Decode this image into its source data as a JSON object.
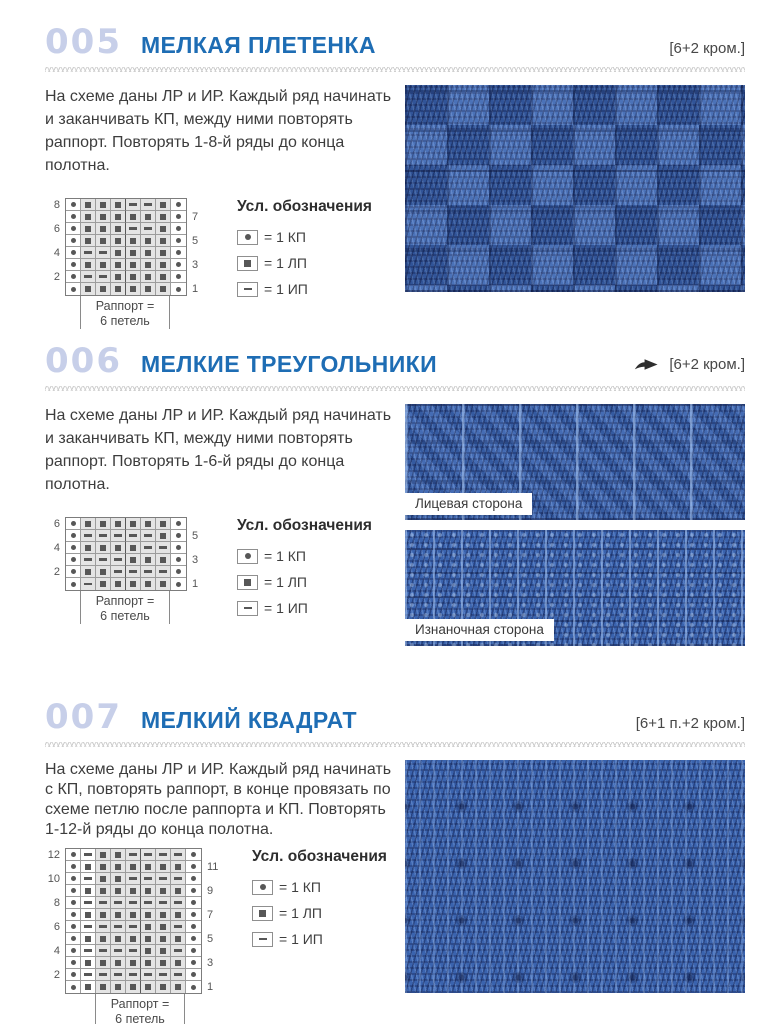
{
  "colors": {
    "accent_blue": "#1e6db4",
    "number_blue": "#c7cfe9",
    "swatch_blue": "#3a63ae",
    "shaded_cell": "#e4e4e4"
  },
  "symbol_key": {
    "O": "dot = 1 КП",
    "S": "square = 1 ЛП",
    "-": "dash = 1 ИП"
  },
  "legend": {
    "title": "Усл. обозначения",
    "items": [
      {
        "symbol": "dot",
        "label": "= 1 КП"
      },
      {
        "symbol": "square",
        "label": "= 1 ЛП"
      },
      {
        "symbol": "dash",
        "label": "= 1 ИП"
      }
    ]
  },
  "sections": [
    {
      "number": "005",
      "title": "МЕЛКАЯ ПЛЕТЕНКА",
      "note": "[6+2 кром.]",
      "has_arrow": false,
      "description": "На схеме даны ЛР и ИР. Каждый ряд начинать и заканчивать КП, между ними повторять раппорт. Повторять 1-8-й ряды до конца полотна.",
      "chart": {
        "shaded_from": 2,
        "shaded_to": 7,
        "heavy_after": 4,
        "rapport_line1": "Раппорт =",
        "rapport_line2": "6 петель",
        "rows": [
          {
            "left": "8",
            "right": "",
            "cells": "OSSS--SO"
          },
          {
            "left": "",
            "right": "7",
            "cells": "OSSSSSSO"
          },
          {
            "left": "6",
            "right": "",
            "cells": "OSSS--SO"
          },
          {
            "left": "",
            "right": "5",
            "cells": "OSSSSSSO"
          },
          {
            "left": "4",
            "right": "",
            "cells": "O--SSSSO"
          },
          {
            "left": "",
            "right": "3",
            "cells": "OSSSSSSO"
          },
          {
            "left": "2",
            "right": "",
            "cells": "O--SSSSO"
          },
          {
            "left": "",
            "right": "1",
            "cells": "OSSSSSSO"
          }
        ]
      },
      "swatches": [
        {
          "label": null
        }
      ]
    },
    {
      "number": "006",
      "title": "МЕЛКИЕ ТРЕУГОЛЬНИКИ",
      "note": "[6+2 кром.]",
      "has_arrow": true,
      "description": "На схеме даны ЛР и ИР. Каждый ряд начинать и заканчивать КП, между ними повторять раппорт. Повторять 1-6-й ряды до конца полотна.",
      "chart": {
        "shaded_from": 2,
        "shaded_to": 7,
        "heavy_after": 4,
        "rapport_line1": "Раппорт =",
        "rapport_line2": "6 петель",
        "rows": [
          {
            "left": "6",
            "right": "",
            "cells": "OSSSSSSO"
          },
          {
            "left": "",
            "right": "5",
            "cells": "O-----SO"
          },
          {
            "left": "4",
            "right": "",
            "cells": "OSSSS--O"
          },
          {
            "left": "",
            "right": "3",
            "cells": "O---SSSO"
          },
          {
            "left": "2",
            "right": "",
            "cells": "OSS----O"
          },
          {
            "left": "",
            "right": "1",
            "cells": "O-SSSSSO"
          }
        ]
      },
      "swatches": [
        {
          "label": "Лицевая сторона"
        },
        {
          "label": "Изнаночная сторона"
        }
      ]
    },
    {
      "number": "007",
      "title": "МЕЛКИЙ КВАДРАТ",
      "note": "[6+1 п.+2 кром.]",
      "has_arrow": false,
      "description": "На схеме даны ЛР и ИР. Каждый ряд начинать с КП, повторять раппорт, в конце провязать по схеме петлю после раппорта и КП. Повторять 1-12-й ряды до конца полотна.",
      "chart": {
        "shaded_from": 3,
        "shaded_to": 8,
        "heavy_after": 5,
        "rapport_line1": "Раппорт =",
        "rapport_line2": "6 петель",
        "rows": [
          {
            "left": "12",
            "right": "",
            "cells": "O-SS----O"
          },
          {
            "left": "",
            "right": "11",
            "cells": "OSSSSSSSO"
          },
          {
            "left": "10",
            "right": "",
            "cells": "O-SS----O"
          },
          {
            "left": "",
            "right": "9",
            "cells": "OSSSSSSSO"
          },
          {
            "left": "8",
            "right": "",
            "cells": "O-------O"
          },
          {
            "left": "",
            "right": "7",
            "cells": "OSSSSSSSO"
          },
          {
            "left": "6",
            "right": "",
            "cells": "O----SS-O"
          },
          {
            "left": "",
            "right": "5",
            "cells": "OSSSSSSSO"
          },
          {
            "left": "4",
            "right": "",
            "cells": "O----SS-O"
          },
          {
            "left": "",
            "right": "3",
            "cells": "OSSSSSSSO"
          },
          {
            "left": "2",
            "right": "",
            "cells": "O-------O"
          },
          {
            "left": "",
            "right": "1",
            "cells": "OSSSSSSSO"
          }
        ]
      },
      "swatches": [
        {
          "label": null
        }
      ]
    }
  ]
}
